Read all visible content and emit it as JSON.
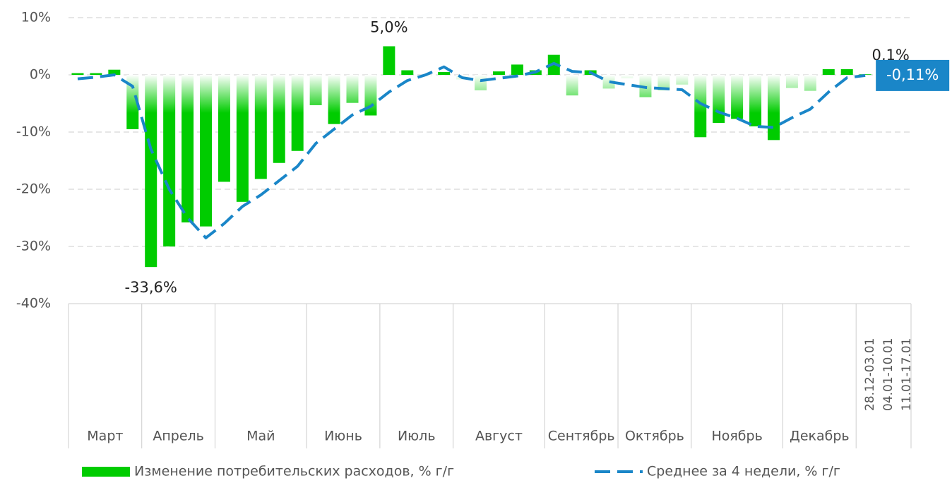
{
  "chart_data": {
    "type": "bar-line",
    "categories": [
      null,
      null,
      null,
      null,
      null,
      null,
      null,
      null,
      null,
      null,
      null,
      null,
      null,
      null,
      null,
      null,
      null,
      null,
      null,
      null,
      null,
      null,
      null,
      null,
      null,
      null,
      null,
      null,
      null,
      null,
      null,
      null,
      null,
      null,
      null,
      null,
      null,
      null,
      null,
      null,
      null,
      null,
      null,
      "28.12-03.01",
      "04.01-10.01",
      "11.01-17.01"
    ],
    "groups": [
      {
        "label": "Март",
        "span": 4
      },
      {
        "label": "Апрель",
        "span": 4
      },
      {
        "label": "Май",
        "span": 5
      },
      {
        "label": "Июнь",
        "span": 4
      },
      {
        "label": "Июль",
        "span": 4
      },
      {
        "label": "Август",
        "span": 5
      },
      {
        "label": "Сентябрь",
        "span": 4
      },
      {
        "label": "Октябрь",
        "span": 4
      },
      {
        "label": "Ноябрь",
        "span": 5
      },
      {
        "label": "Декабрь",
        "span": 4
      }
    ],
    "series": [
      {
        "name": "Изменение потребительских расходов, % г/г",
        "color": "#00cc00",
        "kind": "bar",
        "values": [
          0.3,
          0.3,
          0.9,
          -9.5,
          -33.6,
          -30,
          -25.8,
          -26.5,
          -18.7,
          -22.2,
          -18.2,
          -15.4,
          -13.3,
          -5.3,
          -8.6,
          -4.9,
          -7.1,
          5.0,
          0.8,
          -0.3,
          0.5,
          -0.8,
          -2.7,
          0.6,
          1.8,
          0.8,
          3.5,
          -3.6,
          0.8,
          -2.4,
          -0.6,
          -3.9,
          -2.7,
          -1.7,
          -10.9,
          -8.4,
          -7.7,
          -9.0,
          -11.4,
          -2.3,
          -2.8,
          1.0,
          1.0,
          0.1,
          null,
          null
        ],
        "value_labels": [
          null,
          null,
          null,
          null,
          "-33,6%",
          null,
          null,
          null,
          null,
          null,
          null,
          null,
          null,
          null,
          null,
          null,
          null,
          "5,0%",
          null,
          null,
          null,
          null,
          null,
          null,
          null,
          null,
          null,
          null,
          null,
          null,
          null,
          null,
          null,
          null,
          null,
          null,
          null,
          null,
          null,
          null,
          null,
          null,
          null,
          "0,1%",
          null,
          null
        ]
      },
      {
        "name": "Среднее за 4 недели, % г/г",
        "color": "#1a86c8",
        "kind": "line",
        "values": [
          -0.7,
          -0.4,
          0,
          -2,
          -13,
          -20,
          -25,
          -28.5,
          -26,
          -23,
          -21,
          -18.5,
          -16,
          -12,
          -9.5,
          -7,
          -5.5,
          -3,
          -1,
          0,
          1.4,
          -0.5,
          -1,
          -0.6,
          -0.2,
          0.5,
          2,
          0.6,
          0.4,
          -1.2,
          -1.7,
          -2.2,
          -2.4,
          -2.6,
          -5,
          -6.5,
          -7.6,
          -9,
          -9.2,
          -7.5,
          -6,
          -3,
          -0.5,
          -0.11,
          null,
          null
        ],
        "value_labels": [
          null,
          null,
          null,
          null,
          null,
          null,
          null,
          null,
          null,
          null,
          null,
          null,
          null,
          null,
          null,
          null,
          null,
          null,
          null,
          null,
          null,
          null,
          null,
          null,
          null,
          null,
          null,
          null,
          null,
          null,
          null,
          null,
          null,
          null,
          null,
          null,
          null,
          null,
          null,
          null,
          null,
          null,
          null,
          "-0,11%",
          null,
          null
        ]
      }
    ],
    "ylim": [
      -40,
      10
    ],
    "yticks": [
      {
        "value": 10,
        "label": "10%"
      },
      {
        "value": 0,
        "label": "0%"
      },
      {
        "value": -10,
        "label": "-10%"
      },
      {
        "value": -20,
        "label": "-20%"
      },
      {
        "value": -30,
        "label": "-30%"
      },
      {
        "value": -40,
        "label": "-40%"
      }
    ],
    "grid": true,
    "legend": "bottom"
  }
}
